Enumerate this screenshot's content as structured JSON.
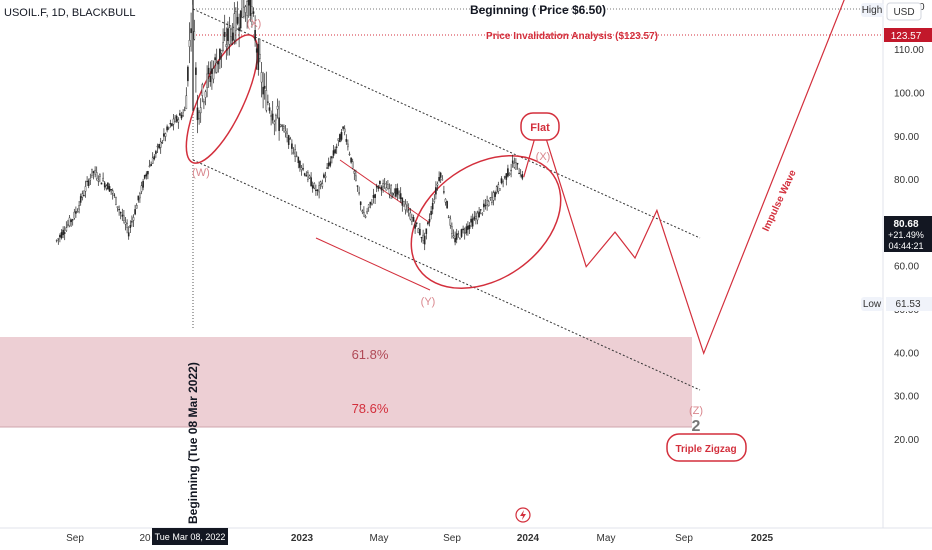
{
  "chart_data": {
    "type": "line",
    "title": "USOIL.F, 1D, BLACKBULL",
    "currency": "USD",
    "x_ticks": [
      "Sep",
      "20",
      "2023",
      "May",
      "Sep",
      "2024",
      "May",
      "Sep",
      "2025"
    ],
    "x_highlight": "Tue Mar 08, 2022",
    "y_ticks": [
      20,
      30,
      40,
      50,
      60,
      70,
      80,
      90,
      100,
      110,
      120
    ],
    "ylim": [
      20,
      130
    ],
    "price_series": {
      "name": "USOIL.F",
      "x": [
        "2021-08-01",
        "2021-09-01",
        "2021-10-01",
        "2021-11-01",
        "2021-12-01",
        "2022-01-01",
        "2022-02-01",
        "2022-02-25",
        "2022-03-08",
        "2022-03-15",
        "2022-04-01",
        "2022-05-01",
        "2022-06-08",
        "2022-07-01",
        "2022-08-01",
        "2022-09-01",
        "2022-09-26",
        "2022-11-07",
        "2022-12-09",
        "2023-01-01",
        "2023-02-01",
        "2023-03-17",
        "2023-04-12",
        "2023-05-04",
        "2023-06-01",
        "2023-07-01",
        "2023-08-10",
        "2023-08-25"
      ],
      "y": [
        66,
        72,
        82,
        78,
        68,
        82,
        92,
        96,
        124,
        96,
        103,
        112,
        122,
        100,
        92,
        83,
        77,
        92,
        71,
        79,
        77,
        66,
        82,
        66,
        70,
        75,
        84,
        80.68
      ]
    },
    "projection": {
      "x": [
        "2023-08-25",
        "2023-09-20",
        "2023-12-01",
        "2024-01-15",
        "2024-02-15",
        "2024-03-20",
        "2024-06-01",
        "2025-02-01"
      ],
      "y": [
        80.68,
        94,
        60,
        68,
        62,
        73,
        40,
        130
      ]
    },
    "last_price": {
      "value": "80.68",
      "change": "+21.49%",
      "countdown": "04:44:21"
    },
    "high_label": "High",
    "high_value": "123.57",
    "low_label": "Low",
    "low_value": "61.53",
    "fib_zone": [
      {
        "label": "61.8%",
        "y": 48
      },
      {
        "label": "78.6%",
        "y": 36
      }
    ],
    "annotations": {
      "beginning_top": "Beginning ( Price $6.50)",
      "invalidation": "Price Invalidation Analysis ($123.57)",
      "beginning_vertical": "Beginning (Tue 08 Mar 2022)",
      "flat": "Flat",
      "impulse": "Impulse Wave",
      "triple_zigzag": "Triple Zigzag",
      "wave_w": "(W)",
      "wave_x1": "(X)",
      "wave_y": "(Y)",
      "wave_x2": "(X)",
      "wave_z": "(Z)",
      "wave_2": "2"
    },
    "colors": {
      "accent": "#d32f3c",
      "fib_fill": "#e9bcc3",
      "candle": "#222222",
      "price_tag": "#131722",
      "high_tag": "#c2182b"
    }
  }
}
